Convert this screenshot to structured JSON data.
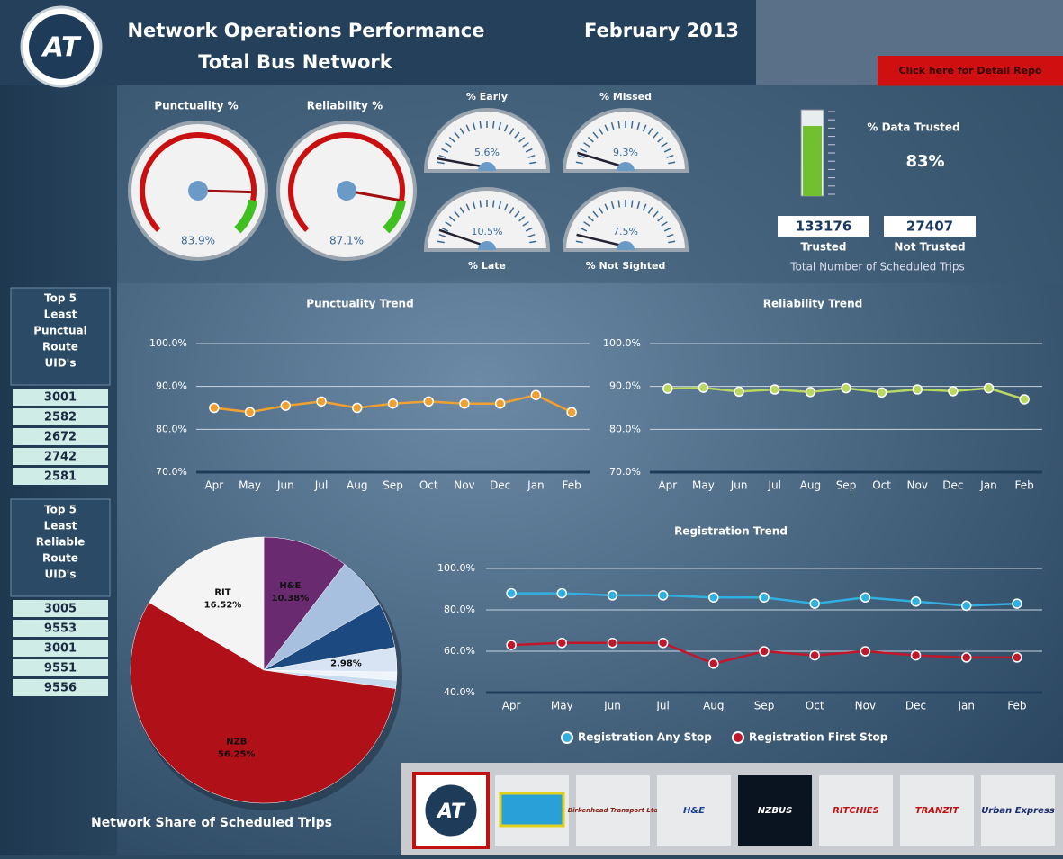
{
  "header": {
    "title": "Network Operations Performance",
    "subtitle": "Total Bus Network",
    "date": "February 2013",
    "button": "Click here for Detail Repo",
    "logo": "AT"
  },
  "gauge_range": [
    0,
    100
  ],
  "gauges": [
    {
      "title": "Punctuality %",
      "value": 83.9,
      "label": "83.9%"
    },
    {
      "title": "Reliability %",
      "value": 87.1,
      "label": "87.1%"
    },
    {
      "title": "% Early",
      "value": 5.6,
      "label": "5.6%"
    },
    {
      "title": "% Missed",
      "value": 9.3,
      "label": "9.3%"
    },
    {
      "title": "% Late",
      "value": 10.5,
      "label": "10.5%"
    },
    {
      "title": "% Not Sighted",
      "value": 7.5,
      "label": "7.5%"
    }
  ],
  "data_trusted": {
    "title": "% Data Trusted",
    "value": 83,
    "label": "83%",
    "trusted": 133176,
    "not_trusted": 27407,
    "trusted_label": "Trusted",
    "not_trusted_label": "Not Trusted",
    "caption": "Total Number of Scheduled Trips"
  },
  "lists": [
    {
      "title_lines": [
        "Top 5",
        "Least",
        "Punctual",
        "Route",
        "UID's"
      ],
      "items": [
        3001,
        2582,
        2672,
        2742,
        2581
      ]
    },
    {
      "title_lines": [
        "Top 5",
        "Least",
        "Reliable",
        "Route",
        "UID's"
      ],
      "items": [
        3005,
        9553,
        3001,
        9551,
        9556
      ]
    }
  ],
  "chart_data": [
    {
      "type": "line",
      "title": "Punctuality Trend",
      "categories": [
        "Apr",
        "May",
        "Jun",
        "Jul",
        "Aug",
        "Sep",
        "Oct",
        "Nov",
        "Dec",
        "Jan",
        "Feb"
      ],
      "series": [
        {
          "name": "Punctuality",
          "color": "#f0a030",
          "values": [
            85,
            84,
            85.5,
            86.5,
            85,
            86,
            86.5,
            86,
            86,
            88,
            84
          ]
        }
      ],
      "ylim": [
        70,
        100
      ],
      "yticks": [
        {
          "value": 70,
          "label": "70.0%"
        },
        {
          "value": 80,
          "label": "80.0%"
        },
        {
          "value": 90,
          "label": "90.0%"
        },
        {
          "value": 100,
          "label": "100.0%"
        }
      ],
      "grid": true
    },
    {
      "type": "line",
      "title": "Reliability Trend",
      "categories": [
        "Apr",
        "May",
        "Jun",
        "Jul",
        "Aug",
        "Sep",
        "Oct",
        "Nov",
        "Dec",
        "Jan",
        "Feb"
      ],
      "series": [
        {
          "name": "Reliability",
          "color": "#b8d860",
          "values": [
            89.5,
            89.7,
            88.8,
            89.3,
            88.7,
            89.6,
            88.6,
            89.3,
            88.9,
            89.6,
            87
          ]
        }
      ],
      "ylim": [
        70,
        100
      ],
      "yticks": [
        {
          "value": 70,
          "label": "70.0%"
        },
        {
          "value": 80,
          "label": "80.0%"
        },
        {
          "value": 90,
          "label": "90.0%"
        },
        {
          "value": 100,
          "label": "100.0%"
        }
      ],
      "grid": true
    },
    {
      "type": "line",
      "title": "Registration Trend",
      "categories": [
        "Apr",
        "May",
        "Jun",
        "Jul",
        "Aug",
        "Sep",
        "Oct",
        "Nov",
        "Dec",
        "Jan",
        "Feb"
      ],
      "series": [
        {
          "name": "Registration Any Stop",
          "color": "#30b0e0",
          "values": [
            88,
            88,
            87,
            87,
            86,
            86,
            83,
            86,
            84,
            82,
            83
          ]
        },
        {
          "name": "Registration First Stop",
          "color": "#c0182a",
          "values": [
            63,
            64,
            64,
            64,
            54,
            60,
            58,
            60,
            58,
            57,
            57
          ]
        }
      ],
      "ylim": [
        40,
        100
      ],
      "yticks": [
        {
          "value": 40,
          "label": "40.0%"
        },
        {
          "value": 60,
          "label": "60.0%"
        },
        {
          "value": 80,
          "label": "80.0%"
        },
        {
          "value": 100,
          "label": "100.0%"
        }
      ],
      "grid": true,
      "legend": "bottom"
    },
    {
      "type": "pie",
      "title": "Network Share of Scheduled Trips",
      "categories": [
        "H&E",
        null,
        null,
        null,
        null,
        null,
        "NZB",
        "RIT"
      ],
      "values": [
        10.38,
        6.38,
        5.49,
        2.98,
        1,
        1,
        56.25,
        16.52
      ],
      "value_labels": [
        "10.38%",
        null,
        null,
        "2.98%",
        null,
        null,
        "56.25%",
        "16.52%"
      ],
      "colors": [
        "#6a2a70",
        "#a8c0e0",
        "#1c4a80",
        "#d8e4f4",
        "#eef4fc",
        "#c8dcf0",
        "#b01018",
        "#f4f4f4"
      ]
    }
  ],
  "operators": [
    "Birkenhead Transport Ltd",
    "H&E",
    "NZBUS",
    "RITCHIES",
    "TRANZIT",
    "Urban Express"
  ]
}
